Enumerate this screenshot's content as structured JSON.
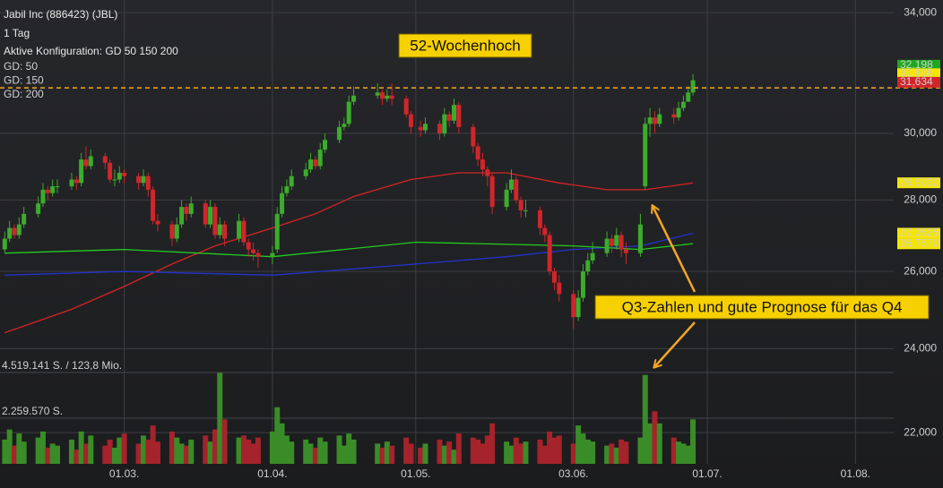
{
  "chart_data": {
    "type": "candlestick",
    "title": "Jabil Inc (886423) (JBL)",
    "subtitle": "1 Tag",
    "config_label": "Aktive Konfiguration: GD 50 150 200",
    "x": [
      "02-04",
      "02-05",
      "02-06",
      "02-07",
      "02-08",
      "02-11",
      "02-12",
      "02-13",
      "02-14",
      "02-15",
      "02-18",
      "02-19",
      "02-20",
      "02-21",
      "02-22",
      "02-25",
      "02-26",
      "02-27",
      "02-28",
      "03-01",
      "03-04",
      "03-05",
      "03-06",
      "03-07",
      "03-08",
      "03-11",
      "03-12",
      "03-13",
      "03-14",
      "03-15",
      "03-18",
      "03-19",
      "03-20",
      "03-21",
      "03-22",
      "03-25",
      "03-26",
      "03-27",
      "03-28",
      "03-29",
      "04-01",
      "04-02",
      "04-03",
      "04-04",
      "04-05",
      "04-08",
      "04-09",
      "04-10",
      "04-11",
      "04-12",
      "04-15",
      "04-16",
      "04-17",
      "04-18",
      "04-23",
      "04-24",
      "04-25",
      "04-26",
      "04-29",
      "04-30",
      "05-02",
      "05-03",
      "05-06",
      "05-07",
      "05-08",
      "05-09",
      "05-10",
      "05-13",
      "05-14",
      "05-15",
      "05-16",
      "05-17",
      "05-20",
      "05-21",
      "05-22",
      "05-23",
      "05-24",
      "05-27",
      "05-28",
      "05-29",
      "05-30",
      "05-31",
      "06-03",
      "06-04",
      "06-05",
      "06-06",
      "06-07",
      "06-10",
      "06-11",
      "06-12",
      "06-13",
      "06-14",
      "06-17",
      "06-18",
      "06-19",
      "06-20",
      "06-21",
      "06-24",
      "06-25",
      "06-26",
      "06-27",
      "06-28"
    ],
    "open": [
      26.6,
      26.9,
      27.2,
      27.0,
      27.3,
      27.6,
      27.9,
      28.3,
      28.2,
      28.4,
      28.4,
      28.6,
      28.5,
      29.2,
      29.0,
      29.3,
      29.1,
      28.6,
      28.6,
      28.8,
      28.7,
      28.5,
      28.7,
      28.3,
      27.4,
      27.3,
      26.9,
      27.3,
      27.8,
      27.6,
      27.9,
      27.3,
      27.8,
      27.0,
      27.3,
      26.9,
      27.4,
      26.8,
      26.6,
      26.5,
      26.4,
      26.6,
      27.6,
      28.2,
      28.4,
      28.7,
      28.9,
      29.2,
      29.0,
      29.5,
      29.8,
      30.2,
      30.3,
      31.0,
      31.2,
      31.3,
      31.1,
      31.2,
      31.1,
      30.6,
      30.2,
      30.1,
      30.3,
      30.0,
      30.6,
      30.4,
      30.9,
      30.2,
      29.6,
      29.2,
      28.9,
      28.7,
      27.8,
      28.3,
      28.6,
      28.0,
      27.7,
      27.7,
      27.2,
      27.0,
      26.0,
      25.7,
      25.4,
      24.8,
      25.3,
      26.0,
      26.3,
      26.5,
      26.9,
      26.7,
      27.0,
      26.6,
      26.5,
      28.4,
      30.3,
      30.5,
      30.3,
      30.6,
      30.5,
      30.8,
      31.0,
      31.3
    ],
    "high": [
      27.1,
      27.4,
      27.3,
      27.5,
      27.8,
      28.1,
      28.5,
      28.4,
      28.6,
      28.6,
      28.8,
      28.7,
      29.4,
      29.6,
      29.5,
      29.4,
      29.2,
      28.9,
      29.0,
      28.9,
      28.8,
      28.9,
      28.8,
      28.4,
      27.6,
      27.4,
      27.5,
      28.0,
      27.9,
      28.1,
      28.0,
      28.0,
      27.9,
      27.5,
      27.4,
      27.6,
      27.5,
      26.9,
      26.8,
      26.6,
      26.7,
      27.8,
      28.4,
      28.6,
      28.9,
      29.1,
      29.4,
      29.3,
      29.7,
      30.0,
      30.4,
      30.5,
      31.2,
      31.5,
      31.6,
      31.4,
      31.4,
      31.6,
      31.2,
      30.7,
      30.4,
      30.5,
      30.4,
      30.8,
      30.7,
      31.1,
      31.0,
      30.3,
      29.7,
      29.4,
      29.0,
      28.8,
      28.5,
      28.9,
      28.7,
      28.1,
      28.0,
      27.8,
      27.3,
      27.1,
      26.1,
      25.9,
      25.5,
      25.5,
      26.2,
      26.5,
      26.8,
      27.1,
      27.0,
      27.2,
      27.1,
      26.8,
      27.6,
      30.5,
      30.8,
      30.7,
      30.8,
      30.8,
      31.0,
      31.2,
      31.5,
      31.9
    ],
    "low": [
      26.5,
      26.8,
      26.9,
      26.9,
      27.2,
      27.5,
      27.8,
      28.0,
      28.1,
      28.2,
      28.3,
      28.3,
      28.4,
      28.9,
      28.9,
      28.9,
      28.5,
      28.4,
      28.5,
      28.5,
      28.3,
      28.4,
      28.1,
      27.3,
      27.1,
      26.7,
      26.8,
      27.2,
      27.4,
      27.5,
      27.2,
      27.2,
      26.9,
      26.9,
      26.7,
      26.8,
      26.7,
      26.4,
      26.3,
      26.1,
      26.2,
      26.5,
      27.5,
      28.1,
      28.3,
      28.6,
      28.8,
      28.9,
      28.9,
      29.4,
      29.7,
      30.1,
      30.2,
      30.9,
      31.1,
      30.9,
      31.0,
      30.9,
      30.5,
      30.0,
      29.9,
      30.0,
      29.8,
      29.9,
      30.2,
      30.3,
      30.0,
      29.4,
      29.0,
      28.7,
      28.4,
      27.6,
      27.7,
      28.2,
      27.9,
      27.5,
      27.5,
      27.0,
      26.8,
      25.9,
      25.5,
      25.2,
      24.5,
      24.7,
      25.2,
      25.9,
      26.2,
      26.4,
      26.5,
      26.6,
      26.4,
      26.2,
      26.4,
      28.3,
      29.9,
      30.0,
      30.2,
      30.3,
      30.4,
      30.7,
      31.0,
      31.2
    ],
    "close": [
      26.9,
      27.2,
      27.0,
      27.3,
      27.6,
      27.9,
      28.3,
      28.2,
      28.4,
      28.4,
      28.6,
      28.5,
      29.2,
      29.0,
      29.3,
      29.1,
      28.6,
      28.6,
      28.8,
      28.7,
      28.5,
      28.7,
      28.3,
      27.4,
      27.3,
      26.9,
      27.3,
      27.8,
      27.6,
      27.9,
      27.3,
      27.8,
      27.0,
      27.3,
      26.9,
      27.4,
      26.8,
      26.6,
      26.5,
      26.4,
      26.5,
      27.6,
      28.2,
      28.4,
      28.7,
      28.9,
      29.2,
      29.0,
      29.5,
      29.8,
      30.2,
      30.3,
      31.0,
      31.2,
      31.3,
      31.1,
      31.2,
      31.1,
      30.6,
      30.2,
      30.1,
      30.3,
      30.0,
      30.6,
      30.4,
      30.9,
      30.2,
      29.6,
      29.2,
      28.9,
      28.7,
      27.8,
      28.3,
      28.6,
      28.0,
      27.7,
      27.7,
      27.2,
      27.0,
      26.0,
      25.7,
      25.4,
      24.8,
      25.3,
      26.0,
      26.3,
      26.5,
      26.9,
      26.7,
      27.0,
      26.6,
      26.5,
      27.3,
      30.3,
      30.5,
      30.3,
      30.6,
      30.5,
      30.8,
      31.0,
      31.3,
      31.7
    ],
    "up_color": "#3cac2c",
    "down_color": "#d0262b",
    "volume": {
      "values": [
        1200000,
        1700000,
        900000,
        1500000,
        1100000,
        1300000,
        1600000,
        800000,
        1000000,
        900000,
        1200000,
        700000,
        1600000,
        1000000,
        1400000,
        900000,
        1200000,
        800000,
        1300000,
        1500000,
        1000000,
        1400000,
        1200000,
        1900000,
        1100000,
        1600000,
        1300000,
        1000000,
        900000,
        1200000,
        1400000,
        1100000,
        1700000,
        4500000,
        2200000,
        1300000,
        1400000,
        1200000,
        1000000,
        1300000,
        1600000,
        2800000,
        2000000,
        1400000,
        1100000,
        1200000,
        1000000,
        800000,
        1300000,
        1100000,
        1400000,
        900000,
        1500000,
        1200000,
        1000000,
        800000,
        1100000,
        900000,
        1300000,
        1000000,
        800000,
        1000000,
        1200000,
        900000,
        1100000,
        700000,
        1500000,
        1300000,
        1200000,
        1000000,
        1400000,
        2000000,
        1100000,
        900000,
        1300000,
        1000000,
        1100000,
        1200000,
        900000,
        1600000,
        1300000,
        1400000,
        1000000,
        1900000,
        1500000,
        1200000,
        1100000,
        900000,
        1000000,
        800000,
        1200000,
        1100000,
        1300000,
        4400000,
        2000000,
        2600000,
        2000000,
        1300000,
        1100000,
        1000000,
        900000,
        2200000
      ],
      "up_color": "#3a8c28",
      "down_color": "#a5232a",
      "ylim": [
        0,
        5228000
      ],
      "yticks": [
        {
          "value": 2259570,
          "label": "2.259.570 S."
        },
        {
          "value": 4519141,
          "label": "4.519.141 S. / 123,8 Mio."
        }
      ]
    },
    "moving_averages": [
      {
        "name": "GD: 50",
        "color": "#d42424",
        "x": [
          "02-04",
          "02-18",
          "03-01",
          "03-11",
          "03-20",
          "04-01",
          "04-10",
          "04-18",
          "04-30",
          "05-10",
          "05-20",
          "05-31",
          "06-10",
          "06-18",
          "06-28"
        ],
        "values": [
          24.4,
          25.0,
          25.6,
          26.2,
          26.7,
          27.2,
          27.6,
          28.1,
          28.6,
          28.8,
          28.8,
          28.5,
          28.3,
          28.3,
          28.5
        ]
      },
      {
        "name": "GD: 150",
        "color": "#2233cc",
        "x": [
          "02-04",
          "03-01",
          "04-01",
          "05-01",
          "05-20",
          "06-03",
          "06-17",
          "06-28"
        ],
        "values": [
          25.9,
          26.0,
          25.9,
          26.2,
          26.4,
          26.6,
          26.7,
          27.05
        ]
      },
      {
        "name": "GD: 200",
        "color": "#22cc22",
        "x": [
          "02-04",
          "03-01",
          "04-01",
          "05-01",
          "06-03",
          "06-17",
          "06-28"
        ],
        "values": [
          26.5,
          26.6,
          26.4,
          26.8,
          26.7,
          26.6,
          26.76
        ]
      }
    ],
    "log_y": true,
    "ylim": [
      21.3,
      34.45
    ],
    "yticks": [
      {
        "value": 22,
        "label": "22,000"
      },
      {
        "value": 24,
        "label": "24,000"
      },
      {
        "value": 26,
        "label": "26,000"
      },
      {
        "value": 28,
        "label": "28,000"
      },
      {
        "value": 30,
        "label": "30,000"
      },
      {
        "value": 34,
        "label": "34,000"
      }
    ],
    "xlim": [
      "02-03",
      "08-09"
    ],
    "xticks": [
      {
        "value": "03-01",
        "label": "01.03."
      },
      {
        "value": "04-01",
        "label": "01.04."
      },
      {
        "value": "05-01",
        "label": "01.05."
      },
      {
        "value": "06-03",
        "label": "03.06."
      },
      {
        "value": "07-01",
        "label": "01.07."
      },
      {
        "value": "08-01",
        "label": "01.08."
      }
    ],
    "grid": true,
    "high_line": {
      "value": 31.45,
      "color": "#f5a623"
    },
    "price_markers": [
      {
        "value": 32.198,
        "label": "32,198",
        "color": "#1fa81f",
        "text_color": "#ffffff"
      },
      {
        "value": 31.916,
        "label": "31,916",
        "color": "#f5e600",
        "text_color": "#000000"
      },
      {
        "value": 31.634,
        "label": "31,634",
        "color": "#d0262b",
        "text_color": "#ffffff"
      },
      {
        "value": 28.5032,
        "label": "28,5032",
        "color": "#f5e600",
        "text_color": "#000000"
      },
      {
        "value": 27.0525,
        "label": "27,0525",
        "color": "#f5e600",
        "text_color": "#000000"
      },
      {
        "value": 26.757,
        "label": "26,7570",
        "color": "#f5e600",
        "text_color": "#000000"
      }
    ],
    "annotations": [
      {
        "text": "52-Wochenhoch"
      },
      {
        "text": "Q3-Zahlen und gute Prognose für das Q4"
      }
    ]
  }
}
